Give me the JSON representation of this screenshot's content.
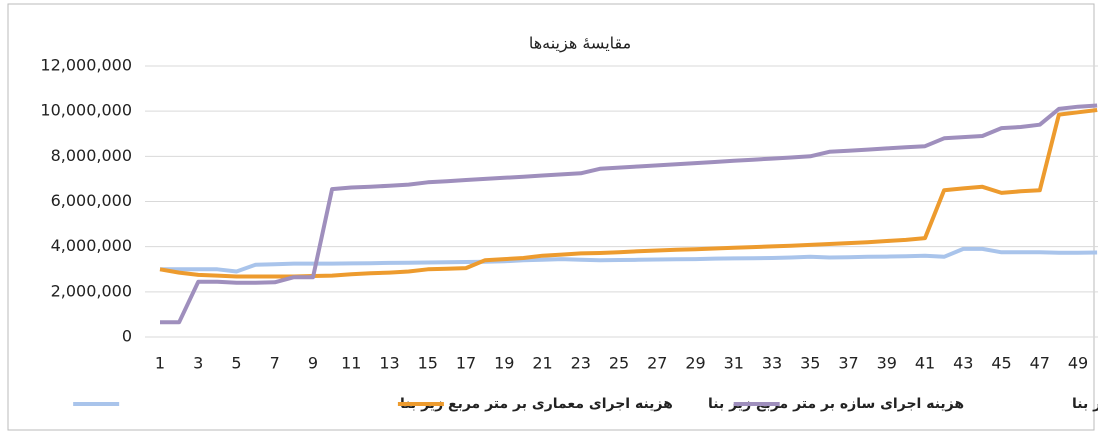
{
  "chart_data": {
    "type": "line",
    "title": "مقایسهٔ هزینه‌ها",
    "categories": [
      1,
      null,
      3,
      null,
      5,
      null,
      7,
      null,
      9,
      null,
      11,
      null,
      13,
      null,
      15,
      null,
      17,
      null,
      19,
      null,
      21,
      null,
      23,
      null,
      25,
      null,
      27,
      null,
      29,
      null,
      31,
      null,
      33,
      null,
      35,
      null,
      37,
      null,
      39,
      null,
      41,
      null,
      43,
      null,
      45,
      null,
      47,
      null,
      49,
      null
    ],
    "series": [
      {
        "name": "هزینه اجرای معماری بر متر مربع زیر بنا",
        "color": "#a9c4eb",
        "values": [
          3000000,
          3000000,
          3000000,
          3000000,
          2900000,
          3200000,
          3220000,
          3250000,
          3250000,
          3250000,
          3260000,
          3270000,
          3280000,
          3290000,
          3300000,
          3310000,
          3320000,
          3330000,
          3350000,
          3400000,
          3420000,
          3450000,
          3420000,
          3400000,
          3410000,
          3420000,
          3430000,
          3440000,
          3450000,
          3470000,
          3480000,
          3490000,
          3500000,
          3520000,
          3550000,
          3520000,
          3530000,
          3550000,
          3560000,
          3580000,
          3600000,
          3550000,
          3900000,
          3900000,
          3750000,
          3750000,
          3750000,
          3730000,
          3730000,
          3740000
        ]
      },
      {
        "name": "هزینه اجرای سازه بر متر مربع زیر بنا",
        "color": "#ed9b2e",
        "values": [
          3000000,
          2850000,
          2750000,
          2720000,
          2680000,
          2680000,
          2680000,
          2680000,
          2700000,
          2720000,
          2780000,
          2820000,
          2850000,
          2900000,
          3000000,
          3020000,
          3050000,
          3400000,
          3450000,
          3500000,
          3600000,
          3650000,
          3700000,
          3720000,
          3750000,
          3800000,
          3830000,
          3860000,
          3890000,
          3920000,
          3950000,
          3980000,
          4010000,
          4040000,
          4080000,
          4120000,
          4160000,
          4200000,
          4250000,
          4300000,
          4380000,
          6500000,
          6580000,
          6650000,
          6380000,
          6450000,
          6500000,
          9850000,
          9950000,
          10050000
        ]
      },
      {
        "name": "هزینه اجرای تاسیسات بر متر مربع زیر بنا",
        "color": "#9f8fbd",
        "values": [
          650000,
          650000,
          2450000,
          2450000,
          2400000,
          2400000,
          2420000,
          2650000,
          2650000,
          6550000,
          6620000,
          6650000,
          6700000,
          6750000,
          6850000,
          6900000,
          6950000,
          7000000,
          7050000,
          7100000,
          7150000,
          7200000,
          7250000,
          7450000,
          7500000,
          7550000,
          7600000,
          7650000,
          7700000,
          7750000,
          7800000,
          7850000,
          7900000,
          7950000,
          8000000,
          8200000,
          8250000,
          8300000,
          8350000,
          8400000,
          8450000,
          8800000,
          8850000,
          8900000,
          9250000,
          9300000,
          9400000,
          10100000,
          10200000,
          10250000
        ]
      }
    ],
    "ylim": [
      0,
      12000000
    ],
    "yticks": [
      0,
      {
        "value": 2000000,
        "label": "2,000,000"
      },
      {
        "value": 4000000,
        "label": "4,000,000"
      },
      {
        "value": 6000000,
        "label": "6,000,000"
      },
      {
        "value": 8000000,
        "label": "8,000,000"
      },
      {
        "value": 10000000,
        "label": "10,000,000"
      },
      {
        "value": 12000000,
        "label": "12,000,000"
      }
    ],
    "grid": true,
    "legend": "bottom"
  }
}
